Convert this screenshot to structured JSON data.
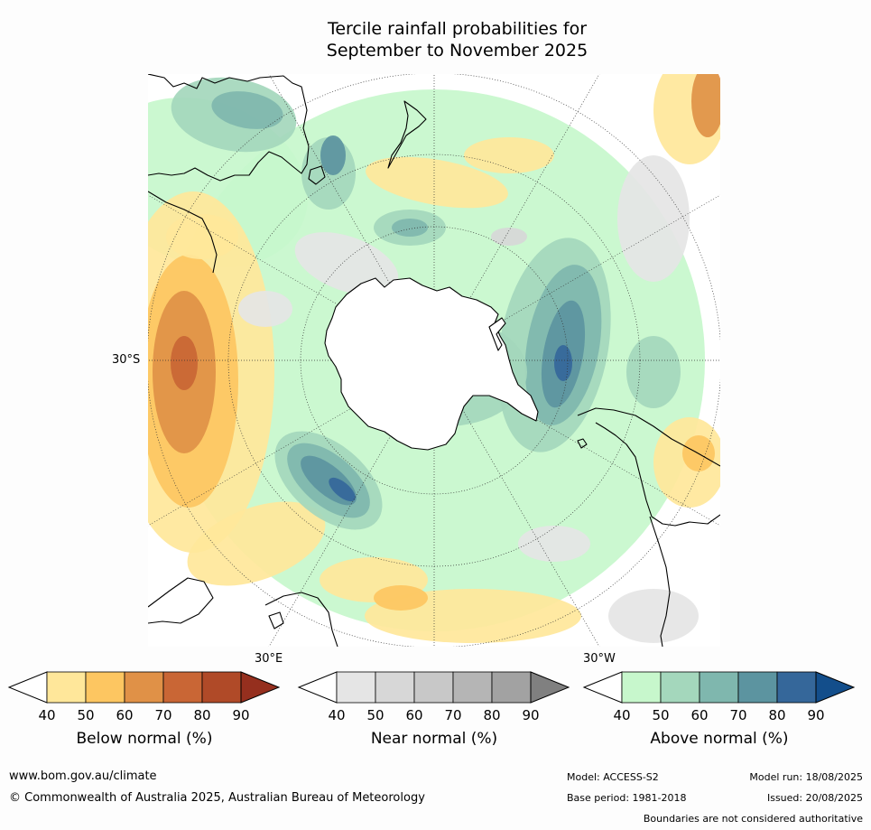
{
  "title": {
    "line1": "Tercile rainfall probabilities for",
    "line2": "September to November 2025"
  },
  "map": {
    "projection": "south-polar-stereographic",
    "labels": {
      "lat_30s": "30°S",
      "lon_30e": "30°E",
      "lon_30w": "30°W"
    }
  },
  "colorbars": [
    {
      "id": "below",
      "title": "Below normal (%)",
      "ticks": [
        "40",
        "50",
        "60",
        "70",
        "80",
        "90"
      ],
      "colors": [
        "#ffffff",
        "#ffe79a",
        "#fdc661",
        "#e09147",
        "#c96635",
        "#b04a28",
        "#952f1e"
      ]
    },
    {
      "id": "near",
      "title": "Near normal (%)",
      "ticks": [
        "40",
        "50",
        "60",
        "70",
        "80",
        "90"
      ],
      "colors": [
        "#ffffff",
        "#e5e5e5",
        "#d7d7d7",
        "#c8c8c8",
        "#b5b5b5",
        "#a2a2a2",
        "#808080"
      ]
    },
    {
      "id": "above",
      "title": "Above normal (%)",
      "ticks": [
        "40",
        "50",
        "60",
        "70",
        "80",
        "90"
      ],
      "colors": [
        "#ffffff",
        "#c7f7cc",
        "#a4d7bc",
        "#7fb7ae",
        "#5c94a0",
        "#35679a",
        "#134e8b"
      ]
    }
  ],
  "footer": {
    "website": "www.bom.gov.au/climate",
    "copyright": "© Commonwealth of Australia 2025, Australian Bureau of Meteorology",
    "model": "Model: ACCESS-S2",
    "model_run": "Model run: 18/08/2025",
    "base_period": "Base period: 1981-2018",
    "issued": "Issued: 20/08/2025",
    "disclaimer": "Boundaries are not considered authoritative"
  }
}
